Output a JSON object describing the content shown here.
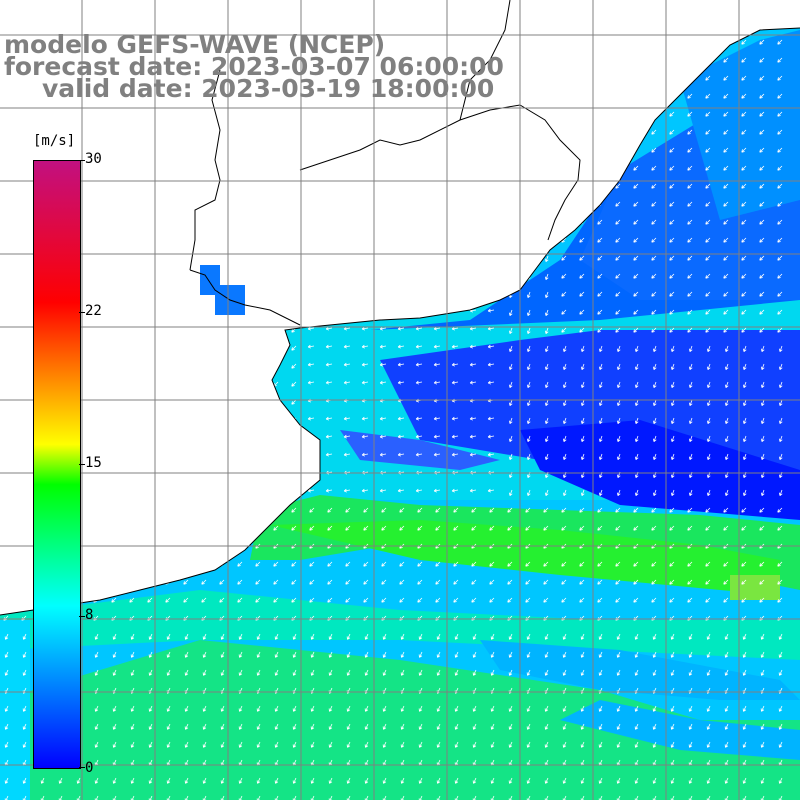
{
  "header": {
    "title_line1": "modelo GEFS-WAVE (NCEP)",
    "title_line2": "forecast date: 2023-03-07 06:00:00",
    "title_line3": "valid date: 2023-03-19 18:00:00"
  },
  "colorbar": {
    "units": "[m/s]",
    "ticks": [
      "30",
      "22",
      "15",
      "8",
      "0"
    ],
    "colors": [
      "#0000ff",
      "#00ffff",
      "#00ff00",
      "#ffff00",
      "#ff0000",
      "#c21080"
    ]
  },
  "map": {
    "field": "wind speed",
    "land_color": "#ffffff",
    "grid_color": "#808080",
    "arrow_color": "#ffffff",
    "coast_color": "#000000"
  }
}
